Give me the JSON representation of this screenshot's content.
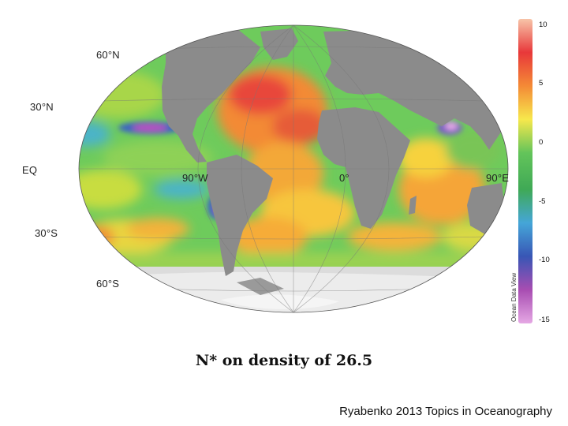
{
  "map": {
    "projection": "Mollweide",
    "lat_labels": [
      "60°N",
      "30°N",
      "EQ",
      "30°S",
      "60°S"
    ],
    "lon_labels": [
      "90°W",
      "0°",
      "90°E"
    ]
  },
  "colorbar": {
    "ticks": [
      "10",
      "5",
      "0",
      "-5",
      "-10",
      "-15"
    ],
    "source": "Ocean Data View",
    "colors": [
      "#f7c4a8",
      "#e8383a",
      "#f48a36",
      "#f7e84c",
      "#63c45a",
      "#3fa956",
      "#45a6d8",
      "#3856b5",
      "#a84db2",
      "#e5a8e4"
    ]
  },
  "caption": "N* on density of 26.5",
  "citation": "Ryabenko 2013 Topics in Oceanography"
}
